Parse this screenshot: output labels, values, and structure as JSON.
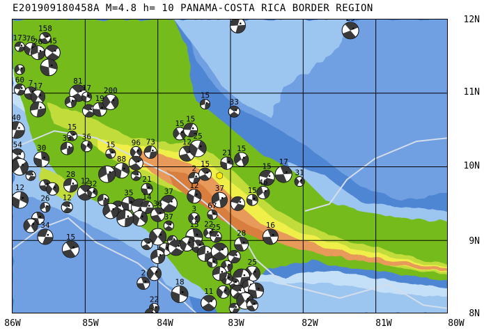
{
  "title": "E201909180458A M=4.8 h= 10 PANAMA-COSTA RICA BORDER REGION",
  "lat_labels": [
    "12N",
    "11N",
    "10N",
    "9N",
    "8N"
  ],
  "lon_labels": [
    "86W",
    "85W",
    "84W",
    "83W",
    "82W",
    "81W",
    "80W"
  ],
  "extent": {
    "lon_min": -86,
    "lon_max": -80,
    "lat_min": 8,
    "lat_max": 12
  },
  "colors": {
    "deep_ocean": "#4f86d3",
    "mid_ocean": "#6f9fe2",
    "shelf": "#9cc6f0",
    "shallow": "#c4e0f8",
    "lowland": "#76bb1a",
    "hills": "#c2dc3a",
    "upland": "#f0ee4a",
    "mountain": "#e79a5a",
    "peak": "#d87f3f",
    "grid": "#000000",
    "plate_boundary": "#d4ddea",
    "event_marker": "#ffee00"
  },
  "event": {
    "lon": -83.15,
    "lat": 9.88
  },
  "focal_mechanisms": [
    {
      "label": "173",
      "lon": -85.9,
      "lat": 11.63
    },
    {
      "label": "158",
      "lon": -85.55,
      "lat": 11.75
    },
    {
      "label": "76",
      "lon": -85.75,
      "lat": 11.6
    },
    {
      "label": "26",
      "lon": -85.65,
      "lat": 11.55
    },
    {
      "label": "45",
      "lon": -85.45,
      "lat": 11.55
    },
    {
      "label": "",
      "lon": -85.5,
      "lat": 11.35
    },
    {
      "label": "",
      "lon": -85.9,
      "lat": 11.32
    },
    {
      "label": "60",
      "lon": -85.9,
      "lat": 11.05
    },
    {
      "label": "7",
      "lon": -85.75,
      "lat": 11.0
    },
    {
      "label": "17",
      "lon": -85.65,
      "lat": 10.95
    },
    {
      "label": "",
      "lon": -85.65,
      "lat": 10.78
    },
    {
      "label": "81",
      "lon": -85.1,
      "lat": 11.0
    },
    {
      "label": "17",
      "lon": -84.98,
      "lat": 10.95
    },
    {
      "label": "",
      "lon": -85.2,
      "lat": 10.88
    },
    {
      "label": "",
      "lon": -84.95,
      "lat": 10.76
    },
    {
      "label": "19",
      "lon": -84.8,
      "lat": 10.78
    },
    {
      "label": "200",
      "lon": -84.65,
      "lat": 10.88
    },
    {
      "label": "40",
      "lon": -85.95,
      "lat": 10.5
    },
    {
      "label": "15",
      "lon": -85.18,
      "lat": 10.42
    },
    {
      "label": "36",
      "lon": -84.98,
      "lat": 10.28
    },
    {
      "label": "33",
      "lon": -85.25,
      "lat": 10.25
    },
    {
      "label": "54",
      "lon": -85.93,
      "lat": 10.15
    },
    {
      "label": "30",
      "lon": -85.6,
      "lat": 10.1
    },
    {
      "label": "",
      "lon": -85.9,
      "lat": 10.0
    },
    {
      "label": "",
      "lon": -85.75,
      "lat": 9.88
    },
    {
      "label": "",
      "lon": -85.55,
      "lat": 9.75
    },
    {
      "label": "",
      "lon": -85.45,
      "lat": 9.7
    },
    {
      "label": "28",
      "lon": -85.2,
      "lat": 9.75
    },
    {
      "label": "12",
      "lon": -85.0,
      "lat": 9.65
    },
    {
      "label": "12",
      "lon": -85.9,
      "lat": 9.55
    },
    {
      "label": "26",
      "lon": -85.55,
      "lat": 9.45
    },
    {
      "label": "12",
      "lon": -85.25,
      "lat": 9.45
    },
    {
      "label": "",
      "lon": -85.65,
      "lat": 9.3
    },
    {
      "label": "",
      "lon": -85.75,
      "lat": 9.2
    },
    {
      "label": "34",
      "lon": -85.55,
      "lat": 9.05
    },
    {
      "label": "15",
      "lon": -85.2,
      "lat": 8.88
    },
    {
      "label": "32",
      "lon": -84.9,
      "lat": 9.65
    },
    {
      "label": "",
      "lon": -84.75,
      "lat": 9.55
    },
    {
      "label": "",
      "lon": -84.55,
      "lat": 9.45
    },
    {
      "label": "35",
      "lon": -84.4,
      "lat": 9.5
    },
    {
      "label": "",
      "lon": -84.65,
      "lat": 9.4
    },
    {
      "label": "",
      "lon": -84.25,
      "lat": 9.45
    },
    {
      "label": "15",
      "lon": -84.65,
      "lat": 10.18
    },
    {
      "label": "96",
      "lon": -84.3,
      "lat": 10.2
    },
    {
      "label": "73",
      "lon": -84.1,
      "lat": 10.2
    },
    {
      "label": "",
      "lon": -84.3,
      "lat": 10.05
    },
    {
      "label": "88",
      "lon": -84.5,
      "lat": 9.95
    },
    {
      "label": "",
      "lon": -84.7,
      "lat": 9.9
    },
    {
      "label": "",
      "lon": -84.3,
      "lat": 9.88
    },
    {
      "label": "21",
      "lon": -84.15,
      "lat": 9.7
    },
    {
      "label": "15",
      "lon": -83.7,
      "lat": 10.45
    },
    {
      "label": "15",
      "lon": -83.55,
      "lat": 10.5
    },
    {
      "label": "12",
      "lon": -83.6,
      "lat": 10.18
    },
    {
      "label": "25",
      "lon": -83.45,
      "lat": 10.25
    },
    {
      "label": "15",
      "lon": -83.35,
      "lat": 10.85
    },
    {
      "label": "33",
      "lon": -82.95,
      "lat": 10.75
    },
    {
      "label": "21",
      "lon": -83.05,
      "lat": 10.05
    },
    {
      "label": "15",
      "lon": -82.85,
      "lat": 10.1
    },
    {
      "label": "15",
      "lon": -82.5,
      "lat": 9.85
    },
    {
      "label": "17",
      "lon": -82.27,
      "lat": 9.9
    },
    {
      "label": "31",
      "lon": -82.05,
      "lat": 9.8
    },
    {
      "label": "2",
      "lon": -83.5,
      "lat": 9.85
    },
    {
      "label": "15",
      "lon": -83.35,
      "lat": 9.9
    },
    {
      "label": "12",
      "lon": -83.5,
      "lat": 9.6
    },
    {
      "label": "37",
      "lon": -83.15,
      "lat": 9.55
    },
    {
      "label": "37",
      "lon": -83.85,
      "lat": 9.5
    },
    {
      "label": "67",
      "lon": -83.25,
      "lat": 9.35
    },
    {
      "label": "3",
      "lon": -83.5,
      "lat": 9.3
    },
    {
      "label": "14",
      "lon": -84.15,
      "lat": 9.45
    },
    {
      "label": "36",
      "lon": -84.0,
      "lat": 9.35
    },
    {
      "label": "",
      "lon": -84.25,
      "lat": 9.3
    },
    {
      "label": "",
      "lon": -84.45,
      "lat": 9.3
    },
    {
      "label": "37",
      "lon": -83.85,
      "lat": 9.2
    },
    {
      "label": "15",
      "lon": -82.7,
      "lat": 9.55
    },
    {
      "label": "46",
      "lon": -82.55,
      "lat": 9.65
    },
    {
      "label": "",
      "lon": -82.9,
      "lat": 9.5
    },
    {
      "label": "16",
      "lon": -82.45,
      "lat": 9.05
    },
    {
      "label": "",
      "lon": -84.0,
      "lat": 9.05
    },
    {
      "label": "",
      "lon": -83.8,
      "lat": 9.0
    },
    {
      "label": "",
      "lon": -84.15,
      "lat": 8.95
    },
    {
      "label": "",
      "lon": -83.9,
      "lat": 8.88
    },
    {
      "label": "",
      "lon": -84.0,
      "lat": 8.78
    },
    {
      "label": "",
      "lon": -83.75,
      "lat": 8.9
    },
    {
      "label": "15",
      "lon": -83.5,
      "lat": 9.05
    },
    {
      "label": "22",
      "lon": -83.3,
      "lat": 9.1
    },
    {
      "label": "25",
      "lon": -83.2,
      "lat": 9.05
    },
    {
      "label": "",
      "lon": -83.45,
      "lat": 8.92
    },
    {
      "label": "",
      "lon": -83.6,
      "lat": 8.95
    },
    {
      "label": "",
      "lon": -83.35,
      "lat": 8.82
    },
    {
      "label": "",
      "lon": -83.15,
      "lat": 8.85
    },
    {
      "label": "",
      "lon": -83.25,
      "lat": 8.7
    },
    {
      "label": "",
      "lon": -83.05,
      "lat": 8.65
    },
    {
      "label": "",
      "lon": -82.95,
      "lat": 8.78
    },
    {
      "label": "28",
      "lon": -82.85,
      "lat": 8.95
    },
    {
      "label": "25",
      "lon": -82.7,
      "lat": 8.55
    },
    {
      "label": "",
      "lon": -82.85,
      "lat": 8.5
    },
    {
      "label": "",
      "lon": -82.95,
      "lat": 8.42
    },
    {
      "label": "",
      "lon": -83.05,
      "lat": 8.48
    },
    {
      "label": "",
      "lon": -82.75,
      "lat": 8.38
    },
    {
      "label": "",
      "lon": -82.9,
      "lat": 8.3
    },
    {
      "label": "",
      "lon": -82.65,
      "lat": 8.32
    },
    {
      "label": "",
      "lon": -82.8,
      "lat": 8.18
    },
    {
      "label": "",
      "lon": -82.95,
      "lat": 8.08
    },
    {
      "label": "",
      "lon": -82.7,
      "lat": 8.12
    },
    {
      "label": "",
      "lon": -83.1,
      "lat": 8.3
    },
    {
      "label": "",
      "lon": -83.15,
      "lat": 8.55
    },
    {
      "label": "11",
      "lon": -83.3,
      "lat": 8.15
    },
    {
      "label": "18",
      "lon": -83.7,
      "lat": 8.27
    },
    {
      "label": "22",
      "lon": -84.05,
      "lat": 8.08
    },
    {
      "label": "",
      "lon": -84.1,
      "lat": 8.0
    },
    {
      "label": "2",
      "lon": -84.2,
      "lat": 8.42
    },
    {
      "label": "",
      "lon": -84.05,
      "lat": 8.55
    },
    {
      "label": "",
      "lon": -82.9,
      "lat": 11.92
    },
    {
      "label": "29",
      "lon": -81.35,
      "lat": 11.85
    }
  ]
}
